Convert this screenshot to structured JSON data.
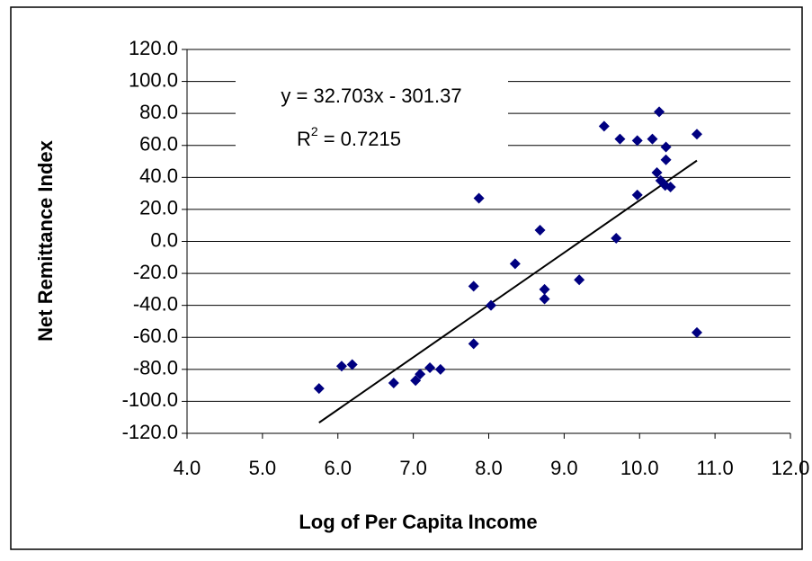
{
  "chart_data": {
    "type": "scatter",
    "x_label": "Log of Per Capita Income",
    "y_label": "Net Remittance Index",
    "annotations": [
      "y = 32.703x - 301.37",
      "R",
      "2",
      "= 0.7215"
    ],
    "trendline": {
      "slope": 32.703,
      "intercept": -301.37,
      "color": "#000000"
    },
    "color": "#000080",
    "grid": true,
    "xlim": [
      4,
      12
    ],
    "ylim": [
      -120,
      120
    ],
    "xticks": [
      {
        "value": 4,
        "label": "4.0"
      },
      {
        "value": 5,
        "label": "5.0"
      },
      {
        "value": 6,
        "label": "6.0"
      },
      {
        "value": 7,
        "label": "7.0"
      },
      {
        "value": 8,
        "label": "8.0"
      },
      {
        "value": 9,
        "label": "9.0"
      },
      {
        "value": 10,
        "label": "10.0"
      },
      {
        "value": 11,
        "label": "11.0"
      },
      {
        "value": 12,
        "label": "12.0"
      }
    ],
    "yticks": [
      {
        "value": 120,
        "label": "120.0"
      },
      {
        "value": 100,
        "label": "100.0"
      },
      {
        "value": 80,
        "label": "80.0"
      },
      {
        "value": 60,
        "label": "60.0"
      },
      {
        "value": 40,
        "label": "40.0"
      },
      {
        "value": 20,
        "label": "20.0"
      },
      {
        "value": 0,
        "label": "0.0"
      },
      {
        "value": -20,
        "label": "-20.0"
      },
      {
        "value": -40,
        "label": "-40.0"
      },
      {
        "value": -60,
        "label": "-60.0"
      },
      {
        "value": -80,
        "label": "-80.0"
      },
      {
        "value": -100,
        "label": "-100.0"
      },
      {
        "value": -120,
        "label": "-120.0"
      }
    ],
    "x": [
      5.75,
      6.05,
      6.19,
      6.74,
      7.03,
      7.09,
      7.22,
      7.36,
      7.8,
      7.8,
      7.87,
      8.03,
      8.35,
      8.68,
      8.74,
      8.74,
      9.2,
      9.53,
      9.74,
      9.69,
      9.97,
      9.97,
      10.17,
      10.23,
      10.26,
      10.28,
      10.34,
      10.35,
      10.35,
      10.41,
      10.76,
      10.76
    ],
    "values": [
      -92,
      -78,
      -77,
      -88.5,
      -87,
      -83,
      -79,
      -80,
      -28,
      -64,
      27,
      -40,
      -14,
      7,
      -30,
      -36,
      -24,
      72,
      64,
      2,
      63,
      29,
      64,
      43,
      81,
      38,
      35,
      59,
      51,
      34,
      67,
      -57
    ]
  }
}
